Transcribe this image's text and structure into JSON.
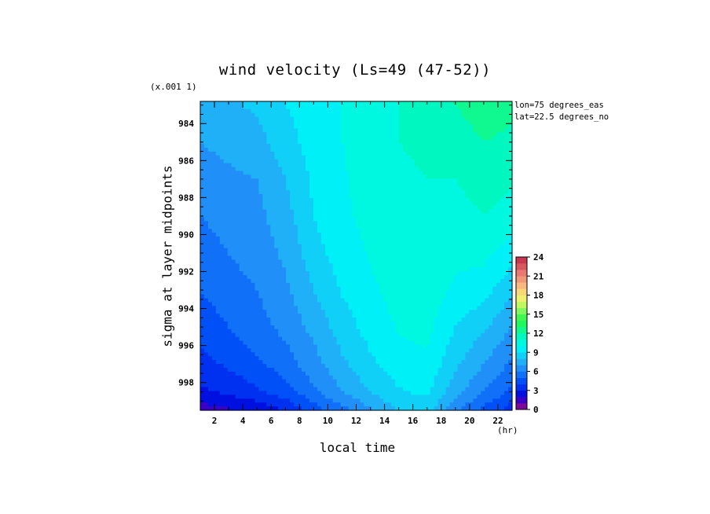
{
  "chart_data": {
    "type": "heatmap",
    "title": "wind velocity (Ls=49 (47-52))",
    "scale_note": "(x.001 1)",
    "xlabel": "local time",
    "ylabel": "sigma at layer midpoints",
    "x_unit": "(hr)",
    "annotations": [
      "lon=75 degrees_eas",
      "lat=22.5 degrees_no"
    ],
    "x_ticks": [
      2,
      4,
      6,
      8,
      10,
      12,
      14,
      16,
      18,
      20,
      22
    ],
    "y_ticks": [
      984,
      986,
      988,
      990,
      992,
      994,
      996,
      998
    ],
    "xlim": [
      1,
      23
    ],
    "ylim": [
      982.8,
      999.5
    ],
    "y_reversed": true,
    "grid": false,
    "x": [
      1,
      3,
      5,
      7,
      9,
      11,
      13,
      15,
      17,
      19,
      21,
      23
    ],
    "y": [
      983,
      985,
      987,
      989,
      991,
      993,
      995,
      997,
      998.5,
      999.4
    ],
    "z": [
      [
        7.5,
        7.8,
        8.2,
        9.0,
        9.5,
        10.0,
        10.5,
        11.0,
        11.5,
        12.0,
        12.5,
        12.2
      ],
      [
        7.0,
        7.3,
        7.6,
        8.6,
        9.4,
        10.0,
        10.5,
        11.0,
        11.2,
        11.5,
        12.0,
        11.8
      ],
      [
        6.5,
        6.8,
        7.0,
        8.0,
        9.2,
        9.9,
        10.4,
        10.8,
        11.0,
        11.0,
        11.5,
        11.2
      ],
      [
        6.0,
        6.4,
        6.7,
        7.6,
        9.0,
        9.8,
        10.3,
        10.7,
        10.9,
        10.6,
        11.0,
        10.5
      ],
      [
        5.5,
        6.0,
        6.4,
        7.2,
        8.6,
        9.5,
        10.1,
        10.6,
        10.8,
        10.3,
        10.3,
        9.5
      ],
      [
        5.0,
        5.6,
        6.0,
        6.8,
        8.0,
        9.1,
        9.8,
        10.4,
        10.6,
        9.8,
        9.4,
        8.2
      ],
      [
        4.4,
        5.0,
        5.6,
        6.3,
        7.3,
        8.5,
        9.4,
        10.1,
        10.3,
        9.0,
        8.2,
        7.0
      ],
      [
        3.6,
        4.2,
        4.8,
        5.5,
        6.6,
        7.8,
        8.8,
        9.6,
        9.8,
        8.2,
        7.0,
        5.8
      ],
      [
        2.8,
        3.2,
        3.8,
        4.6,
        5.8,
        7.0,
        8.0,
        8.9,
        9.2,
        7.4,
        6.0,
        4.8
      ],
      [
        1.6,
        2.0,
        2.4,
        3.2,
        4.6,
        5.8,
        7.0,
        8.2,
        8.6,
        6.4,
        4.8,
        3.6
      ]
    ],
    "colorbar": {
      "ticks": [
        0,
        3,
        6,
        9,
        12,
        15,
        18,
        21,
        24
      ],
      "range": [
        0,
        24
      ],
      "step": 1
    }
  }
}
